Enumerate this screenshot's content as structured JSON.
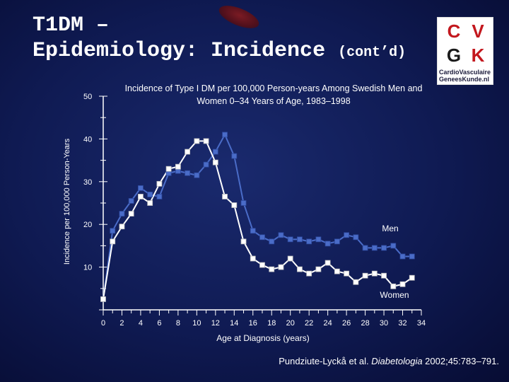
{
  "slide": {
    "title_line1": "T1DM –",
    "title_line2": "Epidemiology: Incidence",
    "title_suffix": "(cont’d)",
    "citation_pre": "Pundziute-Lyckå et al. ",
    "citation_journal": "Diabetologia",
    "citation_post": " 2002;45:783–791."
  },
  "logo": {
    "letters": [
      "C",
      "V",
      "G",
      "K"
    ],
    "tagline_1": "CardioVasculaire",
    "tagline_2": "GeneesKunde.nl"
  },
  "colors": {
    "men": "#4a6cc8",
    "women": "#ffffff",
    "axis": "#ffffff"
  },
  "chart_data": {
    "type": "line",
    "title": "Incidence of Type I DM per 100,000 Person-years Among Swedish Men and Women 0–34 Years of Age, 1983–1998",
    "xlabel": "Age at Diagnosis (years)",
    "ylabel": "Incidence per 100,000 Person-Years",
    "xlim": [
      0,
      34
    ],
    "ylim": [
      0,
      50
    ],
    "xticks": [
      0,
      2,
      4,
      6,
      8,
      10,
      12,
      14,
      16,
      18,
      20,
      22,
      24,
      26,
      28,
      30,
      32,
      34
    ],
    "yticks": [
      10,
      20,
      30,
      40,
      50
    ],
    "series": [
      {
        "name": "Men",
        "x": [
          0,
          1,
          2,
          3,
          4,
          5,
          6,
          7,
          8,
          9,
          10,
          11,
          12,
          13,
          14,
          15,
          16,
          17,
          18,
          19,
          20,
          21,
          22,
          23,
          24,
          25,
          26,
          27,
          28,
          29,
          30,
          31,
          32,
          33
        ],
        "values": [
          2.5,
          18.5,
          22.5,
          25.5,
          28.5,
          27.0,
          26.5,
          32.0,
          32.5,
          32.0,
          31.5,
          34.0,
          37.0,
          41.0,
          36.0,
          25.0,
          18.5,
          17.0,
          16.0,
          17.5,
          16.5,
          16.5,
          16.0,
          16.5,
          15.5,
          16.0,
          17.5,
          17.0,
          14.5,
          14.5,
          14.5,
          15.0,
          12.5,
          12.5
        ]
      },
      {
        "name": "Women",
        "x": [
          0,
          1,
          2,
          3,
          4,
          5,
          6,
          7,
          8,
          9,
          10,
          11,
          12,
          13,
          14,
          15,
          16,
          17,
          18,
          19,
          20,
          21,
          22,
          23,
          24,
          25,
          26,
          27,
          28,
          29,
          30,
          31,
          32,
          33
        ],
        "values": [
          2.5,
          16.0,
          19.5,
          22.5,
          26.5,
          25.0,
          29.5,
          33.0,
          33.5,
          37.0,
          39.5,
          39.5,
          34.5,
          26.5,
          24.5,
          16.0,
          12.0,
          10.5,
          9.5,
          10.0,
          12.0,
          9.5,
          8.5,
          9.5,
          11.0,
          9.0,
          8.5,
          6.5,
          8.0,
          8.5,
          8.0,
          5.5,
          6.0,
          7.5
        ]
      }
    ],
    "annotations": [
      "Men",
      "Women"
    ]
  }
}
